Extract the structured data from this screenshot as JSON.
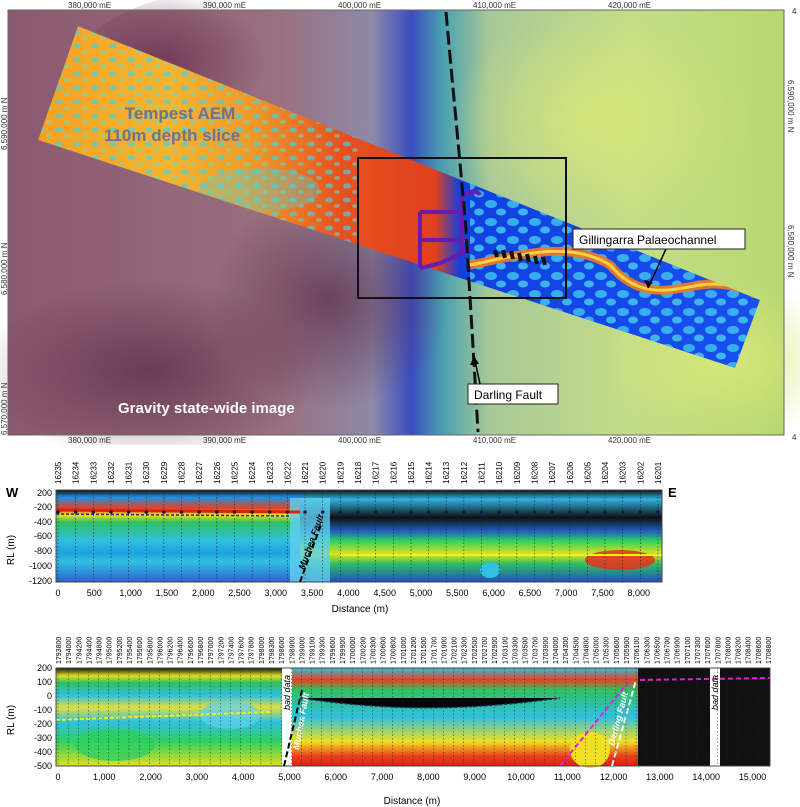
{
  "map": {
    "top_ticks": [
      "380,000 mE",
      "390,000 mE",
      "400,000 mE",
      "410,000 mE",
      "420,000 mE"
    ],
    "bottom_ticks": [
      "380,000 mE",
      "390,000 mE",
      "400,000 mE",
      "410,000 mE",
      "420,000 mE"
    ],
    "left_ticks": [
      "6,590,000 m N",
      "6,580,000 m N",
      "6,570,000 m N"
    ],
    "right_ticks": [
      "6,590,000 m N",
      "6,580,000 m N"
    ],
    "corner_label": "4",
    "aem_title_line1": "Tempest AEM",
    "aem_title_line2": "110m depth slice",
    "gravity_label": "Gravity state-wide image",
    "gillingarra_label": "Gillingarra Palaeochannel",
    "darling_label": "Darling Fault"
  },
  "section1": {
    "west": "W",
    "east": "E",
    "stations": [
      "16235",
      "16234",
      "16233",
      "16232",
      "16231",
      "16230",
      "16229",
      "16228",
      "16227",
      "16226",
      "16225",
      "16224",
      "16223",
      "16222",
      "16221",
      "16220",
      "16219",
      "16218",
      "16217",
      "16216",
      "16215",
      "16214",
      "16213",
      "16212",
      "16211",
      "16210",
      "16209",
      "16208",
      "16207",
      "16206",
      "16205",
      "16204",
      "16203",
      "16202",
      "16201"
    ],
    "y_ticks": [
      "200",
      "-200",
      "-400",
      "-600",
      "-800",
      "-1000",
      "-1200"
    ],
    "x_ticks": [
      "0",
      "500",
      "1,000",
      "1,500",
      "2,000",
      "2,500",
      "3,000",
      "3,500",
      "4,000",
      "4,500",
      "5,000",
      "5,500",
      "6,000",
      "6,500",
      "7,000",
      "7,500",
      "8,000"
    ],
    "y_label": "RL (m)",
    "x_label": "Distance (m)",
    "fault_label": "Muchea Fault"
  },
  "section2": {
    "stations": [
      "1793800",
      "1794000",
      "1794200",
      "1794400",
      "1794800",
      "1795000",
      "1795200",
      "1795400",
      "1795600",
      "1795800",
      "1796000",
      "1796200",
      "1796400",
      "1796600",
      "1796800",
      "1797000",
      "1797200",
      "1797400",
      "1797600",
      "1797800",
      "1798000",
      "1798300",
      "1798600",
      "1798900",
      "1799000",
      "1799100",
      "1799300",
      "1799600",
      "1799900",
      "1700000",
      "1700200",
      "1700300",
      "1700600",
      "1700800",
      "1701000",
      "1701200",
      "1701500",
      "1701700",
      "1701900",
      "1702100",
      "1702300",
      "1702500",
      "1702700",
      "1702900",
      "1703100",
      "1703300",
      "1703500",
      "1703700",
      "1703900",
      "1704000",
      "1704300",
      "1704500",
      "1704800",
      "1705000",
      "1705300",
      "1705600",
      "1705900",
      "1706100",
      "1706300",
      "1706500",
      "1706700",
      "1706900",
      "1707100",
      "1707300",
      "1707600",
      "1707800",
      "1708000",
      "1708200",
      "1708400",
      "1708600",
      "1708800"
    ],
    "y_ticks": [
      "200",
      "100",
      "0",
      "-100",
      "-200",
      "-300",
      "-400",
      "-500"
    ],
    "x_ticks": [
      "0",
      "1,000",
      "2,000",
      "3,000",
      "4,000",
      "5,000",
      "6,000",
      "7,000",
      "8,000",
      "9,000",
      "10,000",
      "11,000",
      "12,000",
      "13,000",
      "14,000",
      "15,000"
    ],
    "y_label": "RL (m)",
    "x_label": "Distance (m)",
    "bad_data": "bad data",
    "muchea_label": "Muchea Fault",
    "darling_label": "Darling Fault"
  }
}
